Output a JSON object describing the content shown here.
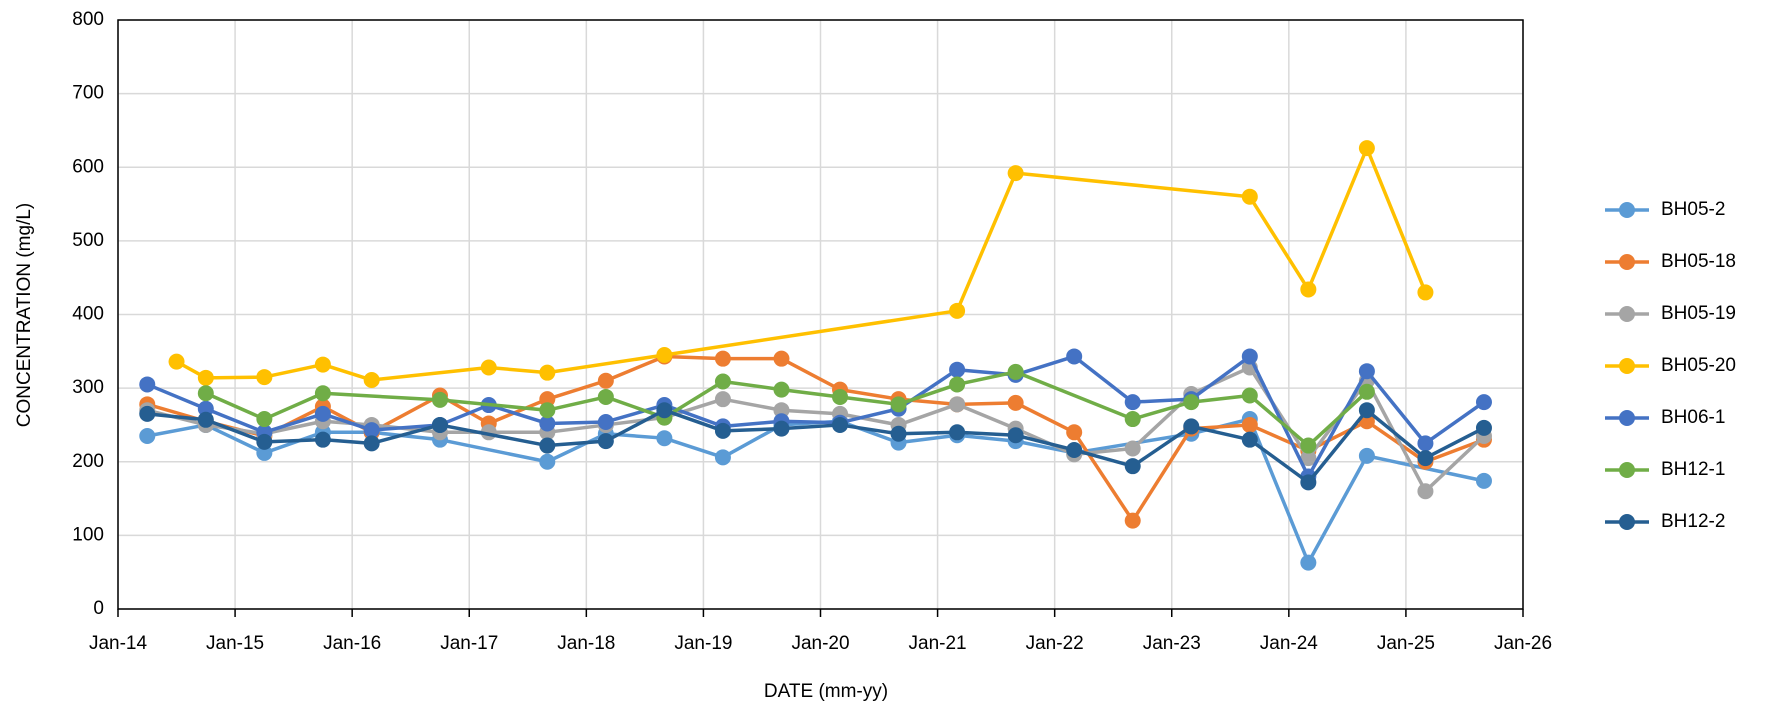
{
  "chart_data": {
    "type": "line",
    "xlabel": "DATE (mm-yy)",
    "ylabel": "CONCENTRATION (mg/L)",
    "xlim": [
      "2014-01",
      "2026-01"
    ],
    "xticks": [
      {
        "value": "2014-01",
        "label": "Jan-14"
      },
      {
        "value": "2015-01",
        "label": "Jan-15"
      },
      {
        "value": "2016-01",
        "label": "Jan-16"
      },
      {
        "value": "2017-01",
        "label": "Jan-17"
      },
      {
        "value": "2018-01",
        "label": "Jan-18"
      },
      {
        "value": "2019-01",
        "label": "Jan-19"
      },
      {
        "value": "2020-01",
        "label": "Jan-20"
      },
      {
        "value": "2021-01",
        "label": "Jan-21"
      },
      {
        "value": "2022-01",
        "label": "Jan-22"
      },
      {
        "value": "2023-01",
        "label": "Jan-23"
      },
      {
        "value": "2024-01",
        "label": "Jan-24"
      },
      {
        "value": "2025-01",
        "label": "Jan-25"
      },
      {
        "value": "2026-01",
        "label": "Jan-26"
      }
    ],
    "ylim": [
      0,
      800
    ],
    "yticks": [
      0,
      100,
      200,
      300,
      400,
      500,
      600,
      700,
      800
    ],
    "grid": true,
    "legend": "right",
    "series": [
      {
        "name": "BH05-2",
        "color": "#5b9bd5",
        "x": [
          "2014-04",
          "2014-10",
          "2015-04",
          "2015-10",
          "2016-03",
          "2016-10",
          "2017-09",
          "2018-03",
          "2018-09",
          "2019-03",
          "2019-09",
          "2020-03",
          "2020-09",
          "2021-03",
          "2021-09",
          "2022-03",
          "2023-03",
          "2023-09",
          "2024-03",
          "2024-09",
          "2025-09"
        ],
        "values": [
          235,
          250,
          212,
          240,
          240,
          230,
          200,
          238,
          232,
          206,
          250,
          255,
          226,
          236,
          228,
          212,
          238,
          258,
          63,
          208,
          174
        ]
      },
      {
        "name": "BH05-18",
        "color": "#ed7d31",
        "x": [
          "2014-04",
          "2014-10",
          "2015-04",
          "2015-10",
          "2016-03",
          "2016-10",
          "2017-03",
          "2017-09",
          "2018-03",
          "2018-09",
          "2019-03",
          "2019-09",
          "2020-03",
          "2020-09",
          "2021-03",
          "2021-09",
          "2022-03",
          "2022-09",
          "2023-03",
          "2023-09",
          "2024-03",
          "2024-09",
          "2025-03",
          "2025-09"
        ],
        "values": [
          278,
          255,
          235,
          275,
          240,
          290,
          252,
          285,
          310,
          343,
          340,
          340,
          298,
          285,
          278,
          280,
          240,
          120,
          245,
          250,
          215,
          255,
          200,
          230
        ]
      },
      {
        "name": "BH05-19",
        "color": "#a5a5a5",
        "x": [
          "2014-04",
          "2014-10",
          "2015-04",
          "2015-10",
          "2016-03",
          "2016-10",
          "2017-03",
          "2017-09",
          "2018-03",
          "2018-09",
          "2019-03",
          "2019-09",
          "2020-03",
          "2020-09",
          "2021-03",
          "2021-09",
          "2022-03",
          "2022-09",
          "2023-03",
          "2023-09",
          "2024-03",
          "2024-09",
          "2025-03",
          "2025-09"
        ],
        "values": [
          270,
          250,
          238,
          255,
          250,
          240,
          240,
          240,
          250,
          260,
          285,
          270,
          265,
          250,
          278,
          245,
          210,
          218,
          292,
          328,
          205,
          310,
          160,
          235
        ]
      },
      {
        "name": "BH05-20",
        "color": "#ffc000",
        "x": [
          "2014-07",
          "2014-10",
          "2015-04",
          "2015-10",
          "2016-03",
          "2017-03",
          "2017-09",
          "2018-09",
          "2021-03",
          "2021-09",
          "2023-09",
          "2024-03",
          "2024-09",
          "2025-03"
        ],
        "values": [
          336,
          314,
          315,
          332,
          311,
          328,
          321,
          345,
          405,
          592,
          560,
          434,
          626,
          430
        ]
      },
      {
        "name": "BH06-1",
        "color": "#4472c4",
        "x": [
          "2014-04",
          "2014-10",
          "2015-04",
          "2015-10",
          "2016-03",
          "2016-10",
          "2017-03",
          "2017-09",
          "2018-03",
          "2018-09",
          "2019-03",
          "2019-09",
          "2020-03",
          "2020-09",
          "2021-03",
          "2021-09",
          "2022-03",
          "2022-09",
          "2023-03",
          "2023-09",
          "2024-03",
          "2024-09",
          "2025-03",
          "2025-09"
        ],
        "values": [
          305,
          272,
          240,
          265,
          243,
          250,
          277,
          252,
          254,
          277,
          248,
          255,
          253,
          272,
          325,
          318,
          343,
          281,
          285,
          343,
          180,
          323,
          225,
          281
        ]
      },
      {
        "name": "BH12-1",
        "color": "#70ad47",
        "x": [
          "2014-10",
          "2015-04",
          "2015-10",
          "2016-10",
          "2017-09",
          "2018-03",
          "2018-09",
          "2019-03",
          "2019-09",
          "2020-03",
          "2020-09",
          "2021-03",
          "2021-09",
          "2022-09",
          "2023-03",
          "2023-09",
          "2024-03",
          "2024-09"
        ],
        "values": [
          293,
          258,
          293,
          284,
          270,
          288,
          260,
          309,
          298,
          288,
          278,
          305,
          322,
          258,
          281,
          290,
          222,
          295
        ]
      },
      {
        "name": "BH12-2",
        "color": "#255e91",
        "x": [
          "2014-04",
          "2014-10",
          "2015-04",
          "2015-10",
          "2016-03",
          "2016-10",
          "2017-09",
          "2018-03",
          "2018-09",
          "2019-03",
          "2019-09",
          "2020-03",
          "2020-09",
          "2021-03",
          "2021-09",
          "2022-03",
          "2022-09",
          "2023-03",
          "2023-09",
          "2024-03",
          "2024-09",
          "2025-03",
          "2025-09"
        ],
        "values": [
          265,
          257,
          227,
          230,
          225,
          250,
          222,
          228,
          270,
          242,
          245,
          250,
          238,
          240,
          236,
          216,
          194,
          248,
          230,
          172,
          270,
          205,
          246
        ]
      }
    ]
  }
}
